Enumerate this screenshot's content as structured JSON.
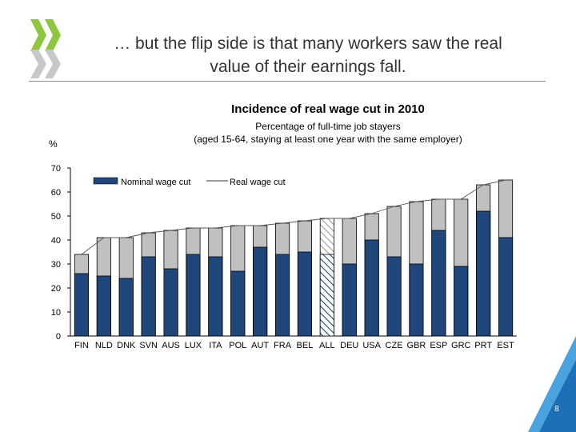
{
  "slide": {
    "title_line1": "… but the flip side is that many workers saw the real",
    "title_line2": "value of their earnings fall.",
    "page_number": "8"
  },
  "colors": {
    "nominal": "#1f477b",
    "real": "#c0c0c0",
    "accent": "#1e7bbf",
    "logo_green": "#8dc63f"
  },
  "chart_data": {
    "type": "bar",
    "title": "Incidence of real wage cut in 2010",
    "subtitle_line1": "Percentage of full-time job stayers",
    "subtitle_line2": "(aged 15-64, staying at least one year with the same employer)",
    "ylabel": "%",
    "ylim": [
      0,
      70
    ],
    "yticks": [
      0,
      10,
      20,
      30,
      40,
      50,
      60,
      70
    ],
    "legend_position": "top-left",
    "categories": [
      "FIN",
      "NLD",
      "DNK",
      "SVN",
      "AUS",
      "LUX",
      "ITA",
      "POL",
      "AUT",
      "FRA",
      "BEL",
      "ALL",
      "DEU",
      "USA",
      "CZE",
      "GBR",
      "ESP",
      "GRC",
      "PRT",
      "EST"
    ],
    "highlighted_category": "ALL",
    "series": [
      {
        "name": "Nominal wage cut",
        "style": "bar",
        "values": [
          26,
          25,
          24,
          33,
          28,
          34,
          33,
          27,
          37,
          34,
          35,
          34,
          30,
          40,
          33,
          30,
          44,
          29,
          52,
          41
        ]
      },
      {
        "name": "Real wage cut",
        "style": "line",
        "values": [
          34,
          41,
          41,
          43,
          44,
          45,
          45,
          46,
          46,
          47,
          48,
          49,
          49,
          51,
          54,
          56,
          57,
          57,
          63,
          65
        ]
      }
    ]
  }
}
